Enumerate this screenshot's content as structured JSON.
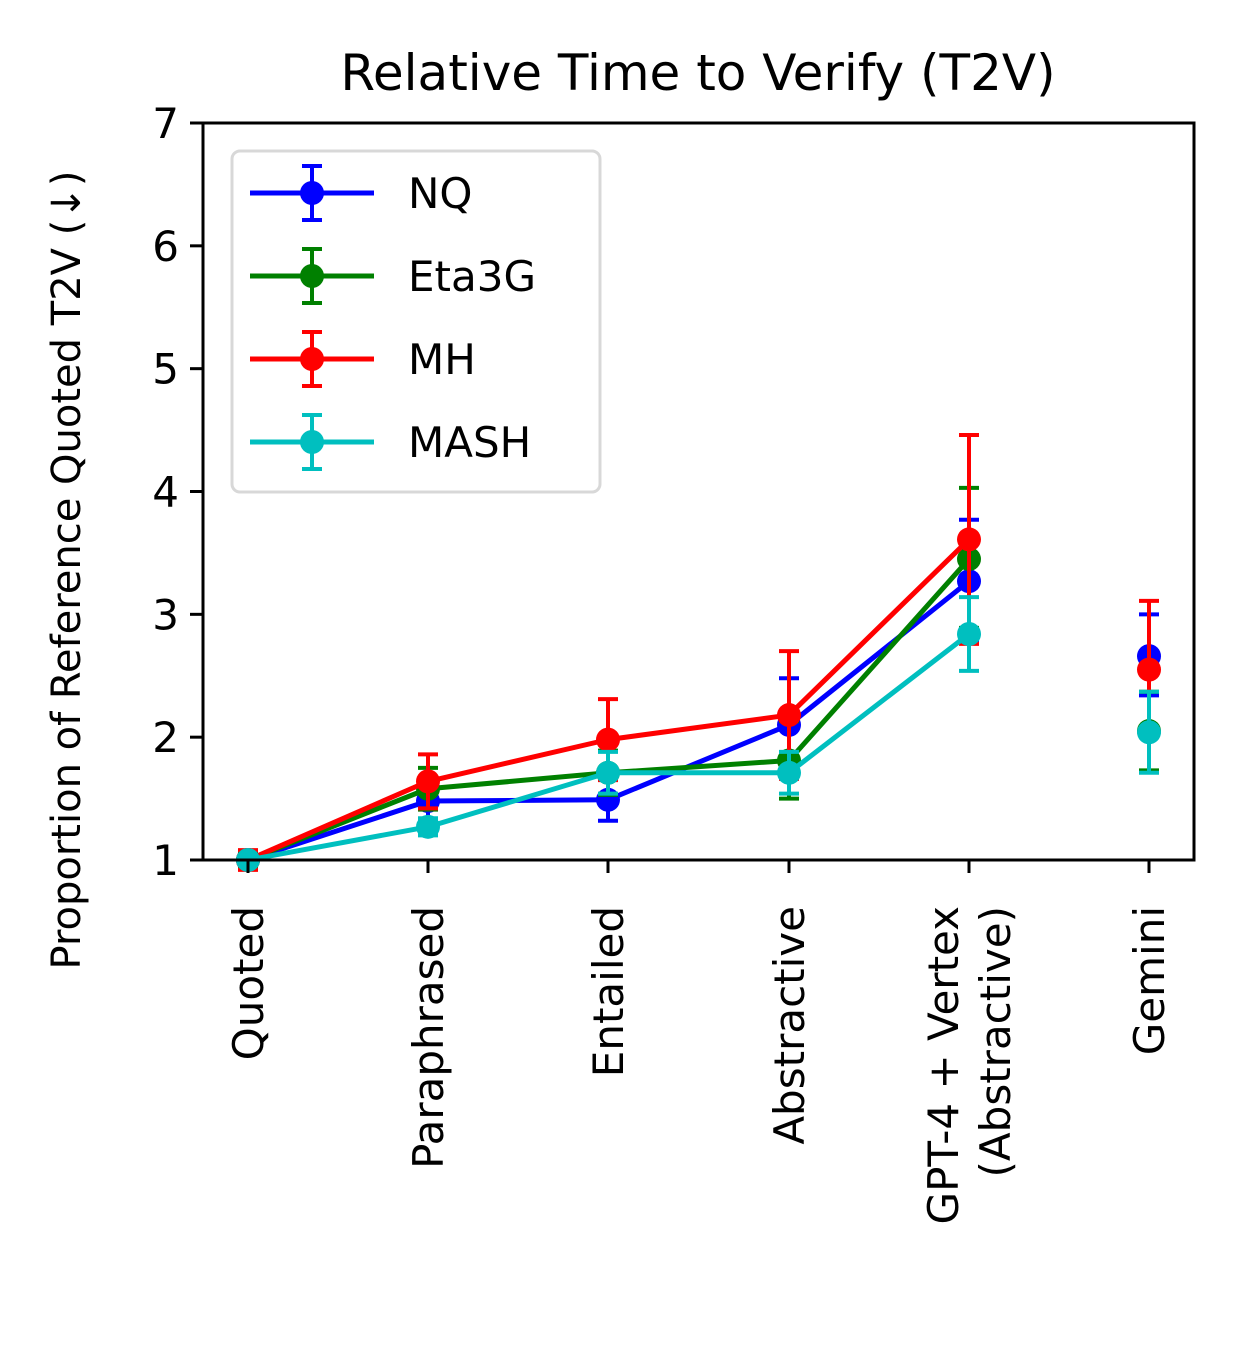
{
  "chart_data": {
    "type": "line",
    "title": "Relative Time to Verify (T2V)",
    "xlabel": "",
    "ylabel": "Proportion of Reference Quoted T2V (↓)",
    "ylim": [
      1,
      7
    ],
    "yticks": [
      "1",
      "2",
      "3",
      "4",
      "5",
      "6",
      "7"
    ],
    "categories": [
      "Quoted",
      "Paraphrased",
      "Entailed",
      "Abstractive",
      "GPT-4 + Vertex\n(Abstractive)",
      "Gemini"
    ],
    "connected_through": 4,
    "legend_position": "top-left",
    "grid": false,
    "series": [
      {
        "name": "NQ",
        "color": "#0000ff",
        "values": [
          1.0,
          1.48,
          1.49,
          2.1,
          3.27,
          2.66
        ],
        "err_low": [
          0.07,
          0.16,
          0.17,
          0.37,
          0.48,
          0.32
        ],
        "err_high": [
          0.07,
          0.16,
          0.17,
          0.38,
          0.5,
          0.34
        ]
      },
      {
        "name": "Eta3G",
        "color": "#008000",
        "values": [
          1.0,
          1.58,
          1.71,
          1.81,
          3.45,
          2.05
        ],
        "err_low": [
          0.07,
          0.17,
          0.18,
          0.31,
          0.56,
          0.32
        ],
        "err_high": [
          0.07,
          0.17,
          0.18,
          0.32,
          0.58,
          0.32
        ]
      },
      {
        "name": "MH",
        "color": "#ff0000",
        "values": [
          1.0,
          1.64,
          1.98,
          2.18,
          3.61,
          2.55
        ],
        "err_low": [
          0.08,
          0.22,
          0.33,
          0.52,
          0.85,
          0.55
        ],
        "err_high": [
          0.08,
          0.22,
          0.33,
          0.52,
          0.85,
          0.56
        ]
      },
      {
        "name": "MASH",
        "color": "#00bfbf",
        "values": [
          1.0,
          1.27,
          1.71,
          1.71,
          2.84,
          2.04
        ],
        "err_low": [
          0.03,
          0.07,
          0.17,
          0.17,
          0.3,
          0.33
        ],
        "err_high": [
          0.03,
          0.07,
          0.17,
          0.17,
          0.3,
          0.33
        ]
      }
    ]
  }
}
